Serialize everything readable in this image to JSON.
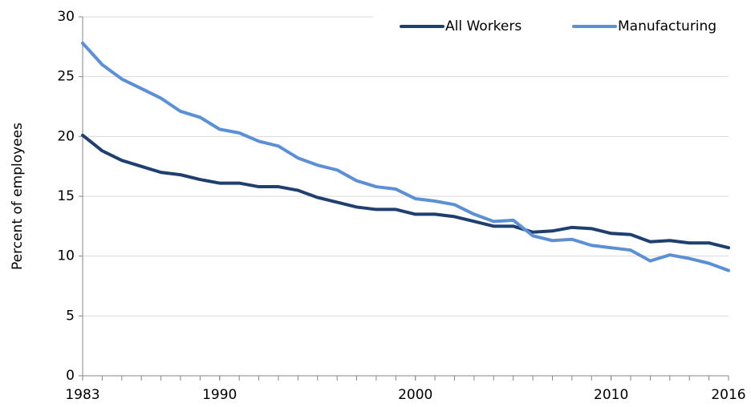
{
  "chart_data": {
    "type": "line",
    "y_label": "Percent of employees",
    "x": [
      1983,
      1984,
      1985,
      1986,
      1987,
      1988,
      1989,
      1990,
      1991,
      1992,
      1993,
      1994,
      1995,
      1996,
      1997,
      1998,
      1999,
      2000,
      2001,
      2002,
      2003,
      2004,
      2005,
      2006,
      2007,
      2008,
      2009,
      2010,
      2011,
      2012,
      2013,
      2014,
      2015,
      2016
    ],
    "series": [
      {
        "name": "All Workers",
        "color": "#1f3f6e",
        "values": [
          20.1,
          18.8,
          18.0,
          17.5,
          17.0,
          16.8,
          16.4,
          16.1,
          16.1,
          15.8,
          15.8,
          15.5,
          14.9,
          14.5,
          14.1,
          13.9,
          13.9,
          13.5,
          13.5,
          13.3,
          12.9,
          12.5,
          12.5,
          12.0,
          12.1,
          12.4,
          12.3,
          11.9,
          11.8,
          11.2,
          11.3,
          11.1,
          11.1,
          10.7
        ]
      },
      {
        "name": "Manufacturing",
        "color": "#5b8fd6",
        "values": [
          27.8,
          26.0,
          24.8,
          24.0,
          23.2,
          22.1,
          21.6,
          20.6,
          20.3,
          19.6,
          19.2,
          18.2,
          17.6,
          17.2,
          16.3,
          15.8,
          15.6,
          14.8,
          14.6,
          14.3,
          13.5,
          12.9,
          13.0,
          11.7,
          11.3,
          11.4,
          10.9,
          10.7,
          10.5,
          9.6,
          10.1,
          9.8,
          9.4,
          8.8
        ]
      }
    ],
    "xlim": [
      1983,
      2016
    ],
    "xticks": [
      1983,
      1990,
      2000,
      2010,
      2016
    ],
    "ylim": [
      0,
      30
    ],
    "yticks": [
      0,
      5,
      10,
      15,
      20,
      25,
      30
    ],
    "grid": true,
    "legend": "top-right"
  }
}
